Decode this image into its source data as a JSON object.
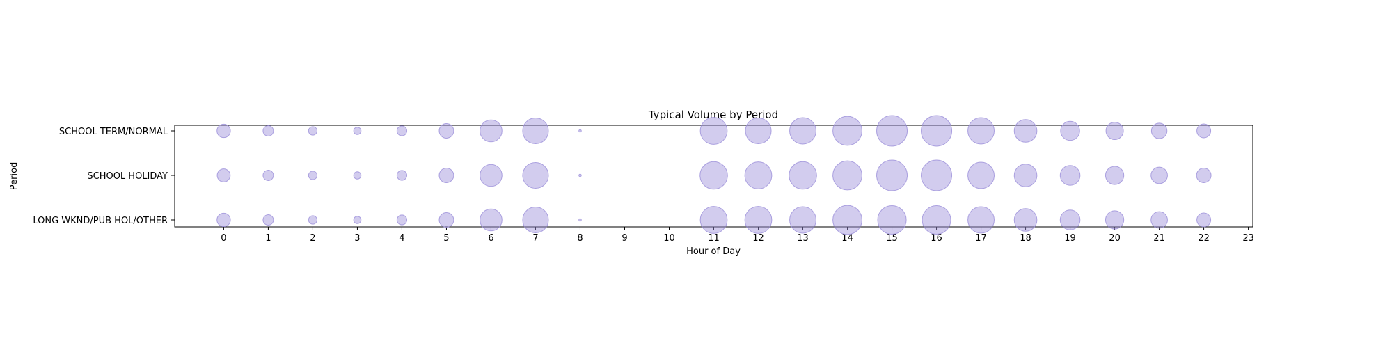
{
  "chart_data": {
    "type": "scatter",
    "title": "Typical Volume by Period",
    "xlabel": "Hour of Day",
    "ylabel": "Period",
    "x_ticks": [
      "0",
      "1",
      "2",
      "3",
      "4",
      "5",
      "6",
      "7",
      "8",
      "9",
      "10",
      "11",
      "12",
      "13",
      "14",
      "15",
      "16",
      "17",
      "18",
      "19",
      "20",
      "21",
      "22",
      "23"
    ],
    "xlim": [
      -1.1,
      23.1
    ],
    "categories": [
      "SCHOOL TERM/NORMAL",
      "SCHOOL HOLIDAY",
      "LONG WKND/PUB HOL/OTHER"
    ],
    "hours": [
      0,
      1,
      2,
      3,
      4,
      5,
      6,
      7,
      8,
      11,
      12,
      13,
      14,
      15,
      16,
      17,
      18,
      19,
      20,
      21,
      22
    ],
    "series": [
      {
        "name": "SCHOOL TERM/NORMAL",
        "values": [
          30,
          18,
          12,
          9,
          16,
          35,
          80,
          110,
          1,
          120,
          110,
          115,
          140,
          155,
          155,
          115,
          85,
          60,
          50,
          40,
          32
        ]
      },
      {
        "name": "SCHOOL HOLIDAY",
        "values": [
          28,
          18,
          12,
          9,
          16,
          35,
          80,
          110,
          1,
          125,
          120,
          125,
          140,
          155,
          155,
          115,
          85,
          65,
          55,
          45,
          35
        ]
      },
      {
        "name": "LONG WKND/PUB HOL/OTHER",
        "values": [
          30,
          18,
          12,
          9,
          16,
          35,
          80,
          110,
          1,
          120,
          120,
          115,
          140,
          135,
          135,
          115,
          85,
          65,
          55,
          45,
          32
        ]
      }
    ],
    "grid": false,
    "colors": {
      "fill": "#9b8fd9",
      "edge": "#9b8fd9"
    }
  }
}
